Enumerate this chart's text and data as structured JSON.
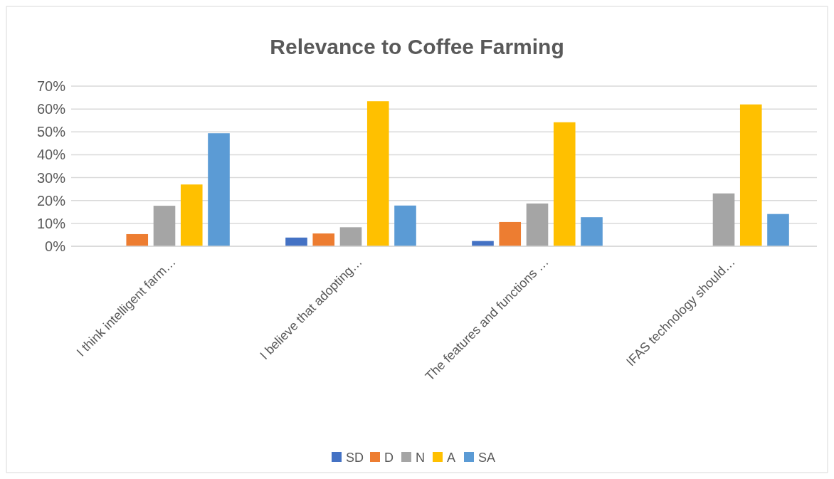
{
  "chart_data": {
    "type": "bar",
    "title": "Relevance to Coffee Farming",
    "categories": [
      "I think intelligent farm…",
      "I believe that adopting…",
      "The features and functions …",
      "IFAS technology should…"
    ],
    "series": [
      {
        "name": "SD",
        "color": "#4472c4",
        "values": [
          0,
          3.8,
          2.3,
          0
        ]
      },
      {
        "name": "D",
        "color": "#ed7d31",
        "values": [
          5.3,
          5.6,
          10.6,
          0
        ]
      },
      {
        "name": "N",
        "color": "#a5a5a5",
        "values": [
          17.7,
          8.3,
          18.7,
          23.1
        ]
      },
      {
        "name": "A",
        "color": "#ffc000",
        "values": [
          27.0,
          63.4,
          54.2,
          62.0
        ]
      },
      {
        "name": "SA",
        "color": "#5b9bd5",
        "values": [
          49.4,
          17.8,
          12.7,
          14.1
        ]
      }
    ],
    "ylim": [
      0,
      70
    ],
    "yticks": [
      {
        "value": 0,
        "label": "0%"
      },
      {
        "value": 10,
        "label": "10%"
      },
      {
        "value": 20,
        "label": "20%"
      },
      {
        "value": 30,
        "label": "30%"
      },
      {
        "value": 40,
        "label": "40%"
      },
      {
        "value": 50,
        "label": "50%"
      },
      {
        "value": 60,
        "label": "60%"
      },
      {
        "value": 70,
        "label": "70%"
      }
    ],
    "grid": "y",
    "legend": "bottom"
  }
}
